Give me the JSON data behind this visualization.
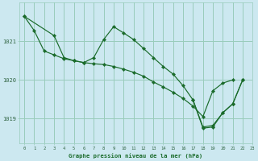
{
  "bg_color": "#cce8f0",
  "grid_color": "#99ccbb",
  "line_color": "#1a6b2a",
  "marker_color": "#1a6b2a",
  "xlabel": "Graphe pression niveau de la mer (hPa)",
  "xlabel_color": "#1a6b2a",
  "tick_color": "#336644",
  "xlim": [
    -0.5,
    23
  ],
  "ylim": [
    1018.35,
    1022.0
  ],
  "yticks": [
    1019,
    1020,
    1021
  ],
  "xticks": [
    0,
    1,
    2,
    3,
    4,
    5,
    6,
    7,
    8,
    9,
    10,
    11,
    12,
    13,
    14,
    15,
    16,
    17,
    18,
    19,
    20,
    21,
    22,
    23
  ],
  "series": [
    {
      "x": [
        0,
        1,
        2,
        3,
        4,
        5,
        6,
        7,
        8,
        9,
        10,
        11,
        12,
        13,
        14,
        15,
        16,
        17,
        18,
        19,
        20,
        21
      ],
      "y": [
        1021.65,
        1021.28,
        1020.75,
        1020.65,
        1020.55,
        1020.5,
        1020.45,
        1020.42,
        1020.4,
        1020.35,
        1020.28,
        1020.2,
        1020.1,
        1019.95,
        1019.82,
        1019.68,
        1019.52,
        1019.32,
        1019.05,
        1019.72,
        1019.92,
        1020.0
      ]
    },
    {
      "x": [
        0,
        3,
        4,
        5,
        6,
        7,
        8,
        9,
        10,
        11,
        12,
        13,
        14,
        15,
        16,
        17,
        18,
        19,
        20,
        21,
        22
      ],
      "y": [
        1021.65,
        1021.15,
        1020.58,
        1020.5,
        1020.45,
        1020.58,
        1021.05,
        1021.38,
        1021.22,
        1021.05,
        1020.82,
        1020.58,
        1020.35,
        1020.15,
        1019.85,
        1019.48,
        1018.78,
        1018.82,
        1019.15,
        1019.38,
        1020.0
      ]
    },
    {
      "x": [
        17,
        18,
        19,
        20,
        21,
        22
      ],
      "y": [
        1019.48,
        1018.75,
        1018.78,
        1019.15,
        1019.38,
        1020.0
      ]
    }
  ]
}
